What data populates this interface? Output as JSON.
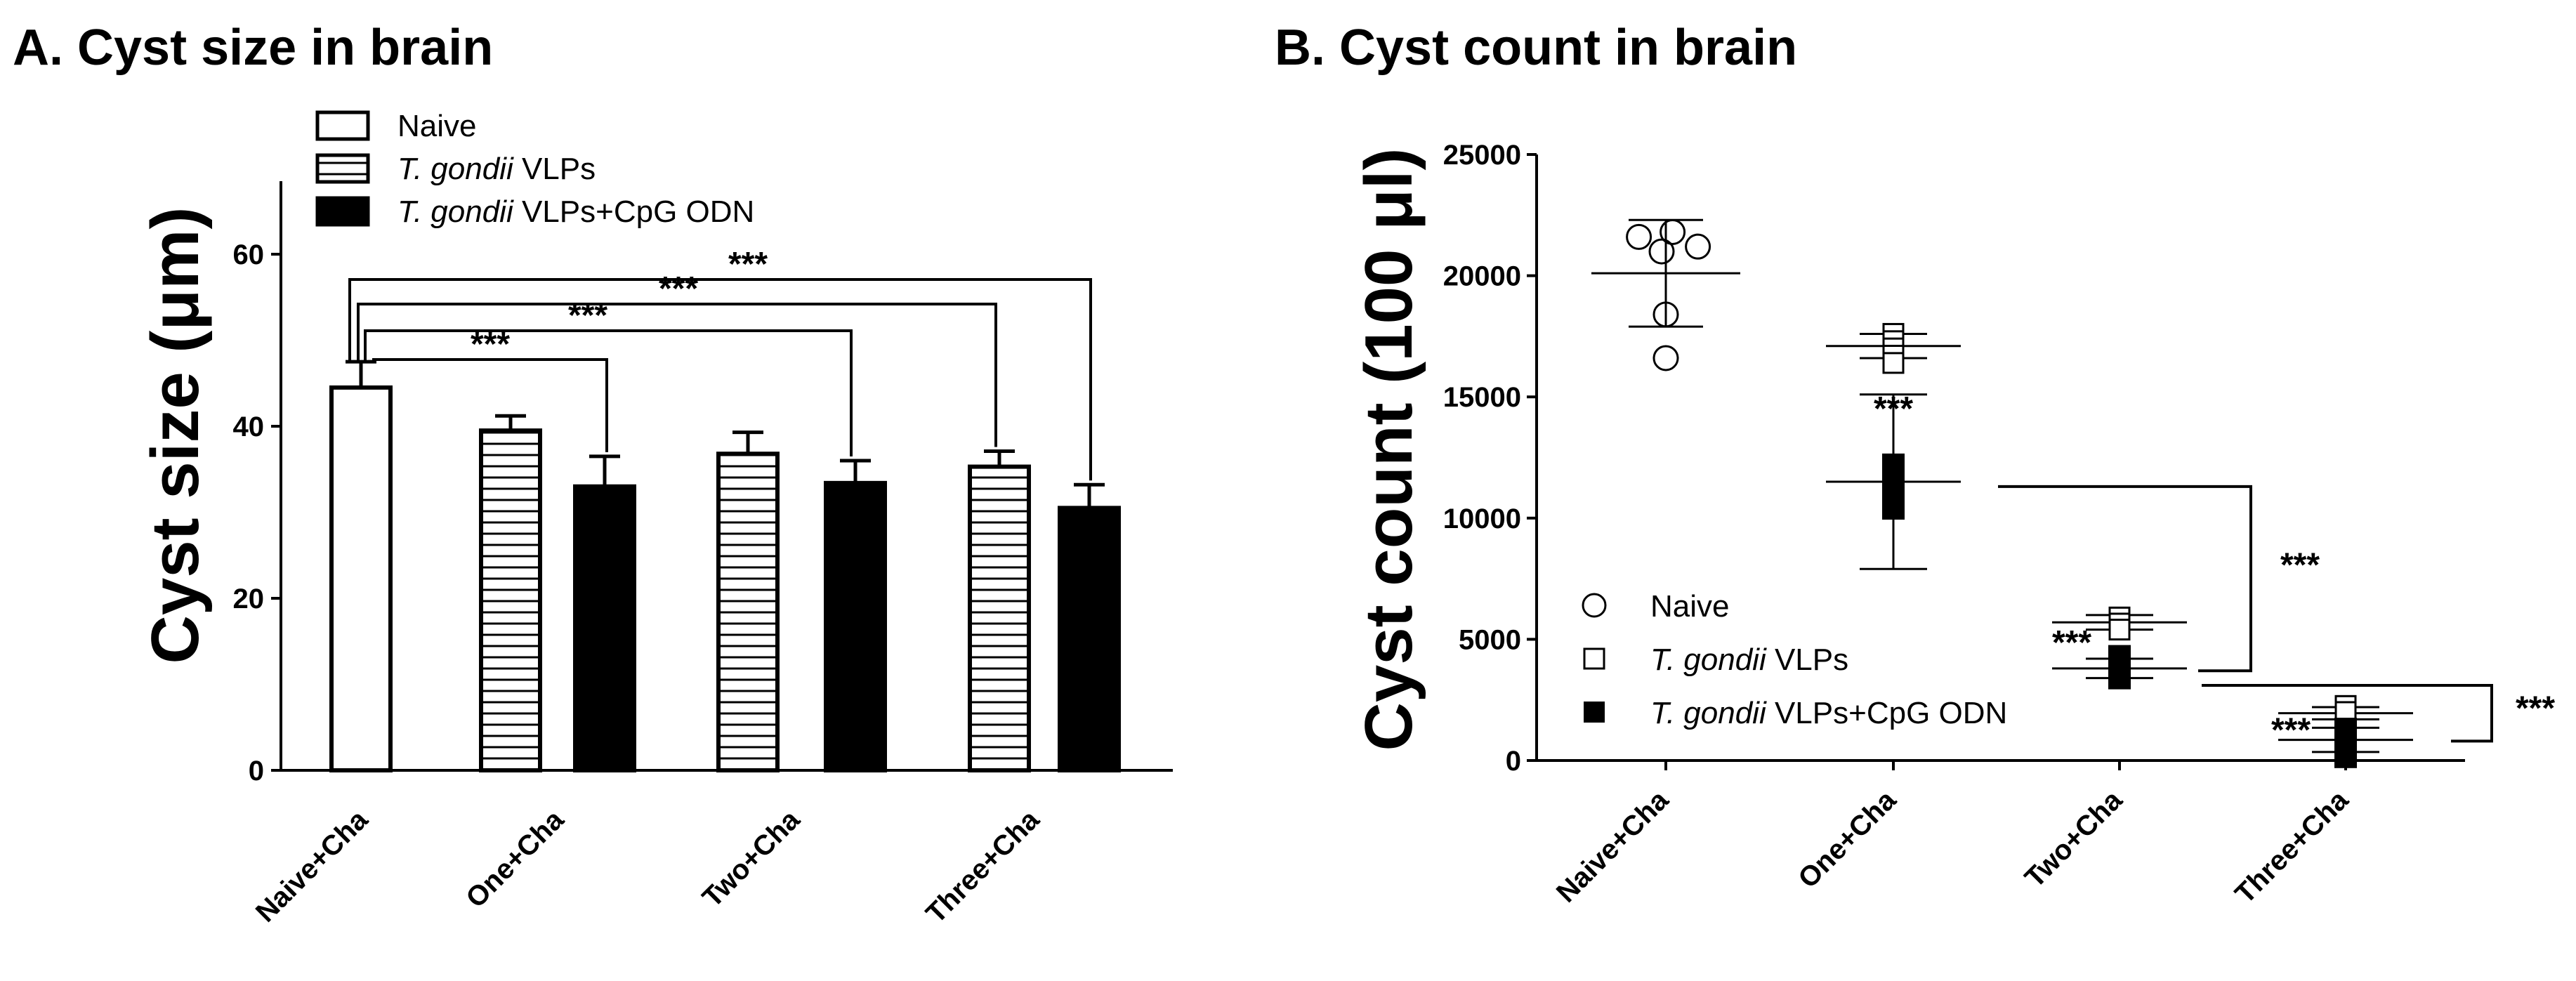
{
  "chart_data": [
    {
      "type": "bar",
      "title": "A. Cyst size in brain",
      "ylabel": "Cyst size (μm)",
      "xlabel": "",
      "ylim": [
        0,
        70
      ],
      "yticks": [
        "0",
        "20",
        "40",
        "60"
      ],
      "categories": [
        "Naive+Cha",
        "One+Cha",
        "Two+Cha",
        "Three+Cha"
      ],
      "legend_position": "top-left",
      "legend": [
        {
          "italic": "",
          "text": "Naive"
        },
        {
          "italic": "T. gondii",
          "text": " VLPs"
        },
        {
          "italic": "T. gondii",
          "text": " VLPs+CpG ODN"
        }
      ],
      "series": [
        {
          "name": "Naive",
          "fill": "white",
          "values": [
            44.5,
            null,
            null,
            null
          ],
          "errors": [
            3.0,
            null,
            null,
            null
          ]
        },
        {
          "name": "T. gondii VLPs",
          "fill": "hatched",
          "values": [
            null,
            39.5,
            36.8,
            35.3
          ],
          "errors": [
            null,
            1.7,
            2.5,
            1.8
          ]
        },
        {
          "name": "T. gondii VLPs+CpG ODN",
          "fill": "black",
          "values": [
            null,
            33.0,
            33.4,
            30.5
          ],
          "errors": [
            null,
            3.5,
            2.6,
            2.7
          ]
        }
      ],
      "significance": [
        {
          "from": "Naive+Cha",
          "to": "One+Cha CpG ODN",
          "label": "***"
        },
        {
          "from": "Naive+Cha",
          "to": "Two+Cha CpG ODN",
          "label": "***"
        },
        {
          "from": "Naive+Cha",
          "to": "Three+Cha VLPs",
          "label": "***"
        },
        {
          "from": "Naive+Cha",
          "to": "Three+Cha CpG ODN",
          "label": "***"
        }
      ]
    },
    {
      "type": "scatter",
      "title": "B. Cyst count in brain",
      "ylabel": "Cyst count (100 μl)",
      "xlabel": "",
      "ylim": [
        0,
        25000
      ],
      "yticks": [
        "0",
        "5000",
        "10000",
        "15000",
        "20000",
        "25000"
      ],
      "categories": [
        "Naive+Cha",
        "One+Cha",
        "Two+Cha",
        "Three+Cha"
      ],
      "legend_position": "bottom-left",
      "legend": [
        {
          "italic": "",
          "text": "Naive"
        },
        {
          "italic": "T. gondii",
          "text": " VLPs"
        },
        {
          "italic": "T. gondii",
          "text": " VLPs+CpG ODN"
        }
      ],
      "series": [
        {
          "name": "Naive",
          "marker": "open-circle",
          "points": [
            {
              "cat": 0,
              "y": 21600,
              "dx": -0.32
            },
            {
              "cat": 0,
              "y": 21800,
              "dx": 0.08
            },
            {
              "cat": 0,
              "y": 21200,
              "dx": 0.38
            },
            {
              "cat": 0,
              "y": 21000,
              "dx": -0.05
            },
            {
              "cat": 0,
              "y": 18400,
              "dx": 0.0
            },
            {
              "cat": 0,
              "y": 16600,
              "dx": 0.0
            }
          ],
          "mean": [
            20100,
            null,
            null,
            null
          ],
          "sd": [
            2200,
            null,
            null,
            null
          ]
        },
        {
          "name": "T. gondii VLPs",
          "marker": "open-square",
          "points": [
            {
              "cat": 1,
              "y": 17600,
              "dx": 0
            },
            {
              "cat": 1,
              "y": 17300,
              "dx": 0
            },
            {
              "cat": 1,
              "y": 17000,
              "dx": 0
            },
            {
              "cat": 1,
              "y": 16700,
              "dx": 0
            },
            {
              "cat": 1,
              "y": 16400,
              "dx": 0
            },
            {
              "cat": 2,
              "y": 5900,
              "dx": 0
            },
            {
              "cat": 2,
              "y": 5650,
              "dx": 0
            },
            {
              "cat": 2,
              "y": 5400,
              "dx": 0
            },
            {
              "cat": 3,
              "y": 2250,
              "dx": 0
            },
            {
              "cat": 3,
              "y": 2000,
              "dx": 0
            }
          ],
          "mean": [
            null,
            17100,
            5700,
            1950
          ],
          "sd": [
            null,
            500,
            300,
            250
          ]
        },
        {
          "name": "T. gondii VLPs+CpG ODN",
          "marker": "filled-square",
          "points": [
            {
              "cat": 1,
              "y": 12200,
              "dx": 0
            },
            {
              "cat": 1,
              "y": 11900,
              "dx": 0
            },
            {
              "cat": 1,
              "y": 11600,
              "dx": 0
            },
            {
              "cat": 1,
              "y": 11300,
              "dx": 0
            },
            {
              "cat": 1,
              "y": 11000,
              "dx": 0
            },
            {
              "cat": 1,
              "y": 10700,
              "dx": 0
            },
            {
              "cat": 1,
              "y": 10400,
              "dx": 0
            },
            {
              "cat": 2,
              "y": 4300,
              "dx": 0
            },
            {
              "cat": 2,
              "y": 4000,
              "dx": 0
            },
            {
              "cat": 2,
              "y": 3700,
              "dx": 0
            },
            {
              "cat": 2,
              "y": 3400,
              "dx": 0
            },
            {
              "cat": 3,
              "y": 1300,
              "dx": 0
            },
            {
              "cat": 3,
              "y": 1000,
              "dx": 0
            },
            {
              "cat": 3,
              "y": 700,
              "dx": 0
            },
            {
              "cat": 3,
              "y": 400,
              "dx": 0
            },
            {
              "cat": 3,
              "y": 150,
              "dx": 0
            }
          ],
          "mean": [
            null,
            11500,
            3800,
            850
          ],
          "sd": [
            null,
            3600,
            400,
            500
          ]
        }
      ],
      "significance_labels": [
        "***",
        "***",
        "***",
        "***",
        "***"
      ]
    }
  ]
}
